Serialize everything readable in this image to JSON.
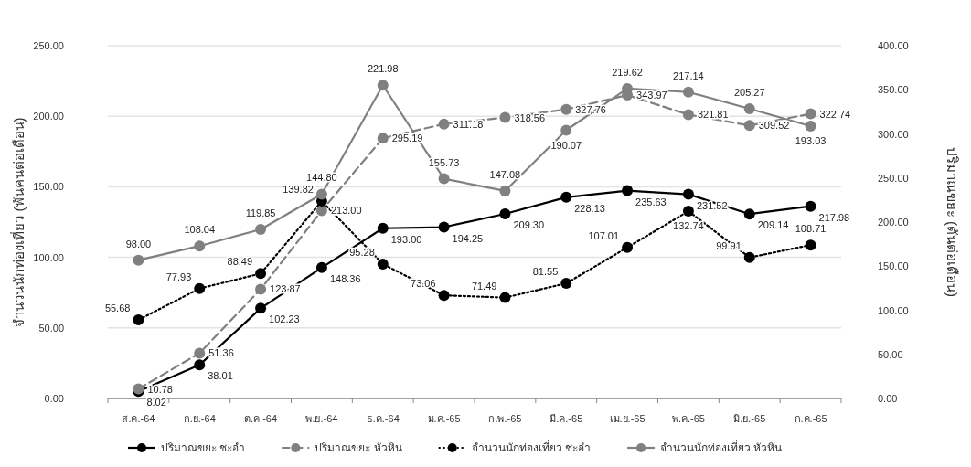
{
  "chart_data": {
    "type": "line",
    "ylabel": "จำนวนนักท่องเที่ยว (พันคนต่อเดือน)",
    "y2label": "ปริมาณขยะ (ตันต่อเดือน)",
    "categories": [
      "ส.ค.-64",
      "ก.ย.-64",
      "ต.ค.-64",
      "พ.ย.-64",
      "ธ.ค.-64",
      "ม.ค.-65",
      "ก.พ.-65",
      "มี.ค.-65",
      "เม.ย.-65",
      "พ.ค.-65",
      "มิ.ย.-65",
      "ก.ค.-65"
    ],
    "series": [
      {
        "name": "ปริมาณขยะ ชะอำ",
        "color": "#000000",
        "axis": "y2",
        "line_style": "solid",
        "values": [
          8.02,
          38.01,
          102.23,
          148.36,
          193.0,
          194.25,
          209.3,
          228.13,
          235.63,
          231.52,
          209.14,
          217.98
        ],
        "value_labels": [
          "8.02",
          "38.01",
          "102.23",
          "148.36",
          "193.00",
          "194.25",
          "209.30",
          "228.13",
          "235.63",
          "231.52",
          "209.14",
          "217.98"
        ]
      },
      {
        "name": "ปริมาณขยะ หัวหิน",
        "color": "#808080",
        "axis": "y2",
        "line_style": "dashed",
        "values": [
          10.78,
          51.36,
          123.87,
          213.0,
          295.19,
          311.18,
          318.56,
          327.76,
          343.97,
          321.81,
          309.52,
          322.74
        ],
        "value_labels": [
          "10.78",
          "51.36",
          "123.87",
          "213.00",
          "295.19",
          "311.18",
          "318.56",
          "327.76",
          "343.97",
          "321.81",
          "309.52",
          "322.74"
        ]
      },
      {
        "name": "จำนวนนักท่องเที่ยว ชะอำ",
        "color": "#000000",
        "line_style": "dotted",
        "values": [
          55.68,
          77.93,
          88.49,
          139.82,
          95.28,
          73.06,
          71.49,
          81.55,
          107.01,
          132.74,
          99.91,
          108.71
        ],
        "value_labels": [
          "55.68",
          "77.93",
          "88.49",
          "139.82",
          "95.28",
          "73.06",
          "71.49",
          "81.55",
          "107.01",
          "132.74",
          "99.91",
          "108.71"
        ]
      },
      {
        "name": "จำนวนนักท่องเที่ยว หัวหิน",
        "color": "#808080",
        "line_style": "solid",
        "values": [
          98.0,
          108.04,
          119.85,
          144.8,
          221.98,
          155.73,
          147.08,
          190.07,
          219.62,
          217.14,
          205.27,
          193.03
        ],
        "value_labels": [
          "98.00",
          "108.04",
          "119.85",
          "144.80",
          "221.98",
          "155.73",
          "147.08",
          "190.07",
          "219.62",
          "217.14",
          "205.27",
          "193.03"
        ]
      }
    ],
    "ylim": [
      0,
      250
    ],
    "yticks": [
      {
        "value": 0,
        "label": "0.00"
      },
      {
        "value": 50,
        "label": "50.00"
      },
      {
        "value": 100,
        "label": "100.00"
      },
      {
        "value": 150,
        "label": "150.00"
      },
      {
        "value": 200,
        "label": "200.00"
      },
      {
        "value": 250,
        "label": "250.00"
      }
    ],
    "y2lim": [
      0,
      400
    ],
    "y2ticks": [
      {
        "value": 0,
        "label": "0.00"
      },
      {
        "value": 50,
        "label": "50.00"
      },
      {
        "value": 100,
        "label": "100.00"
      },
      {
        "value": 150,
        "label": "150.00"
      },
      {
        "value": 200,
        "label": "200.00"
      },
      {
        "value": 250,
        "label": "250.00"
      },
      {
        "value": 300,
        "label": "300.00"
      },
      {
        "value": 350,
        "label": "350.00"
      },
      {
        "value": 400,
        "label": "400.00"
      }
    ],
    "grid": "y",
    "legend": "bottom",
    "marker": "circle"
  }
}
